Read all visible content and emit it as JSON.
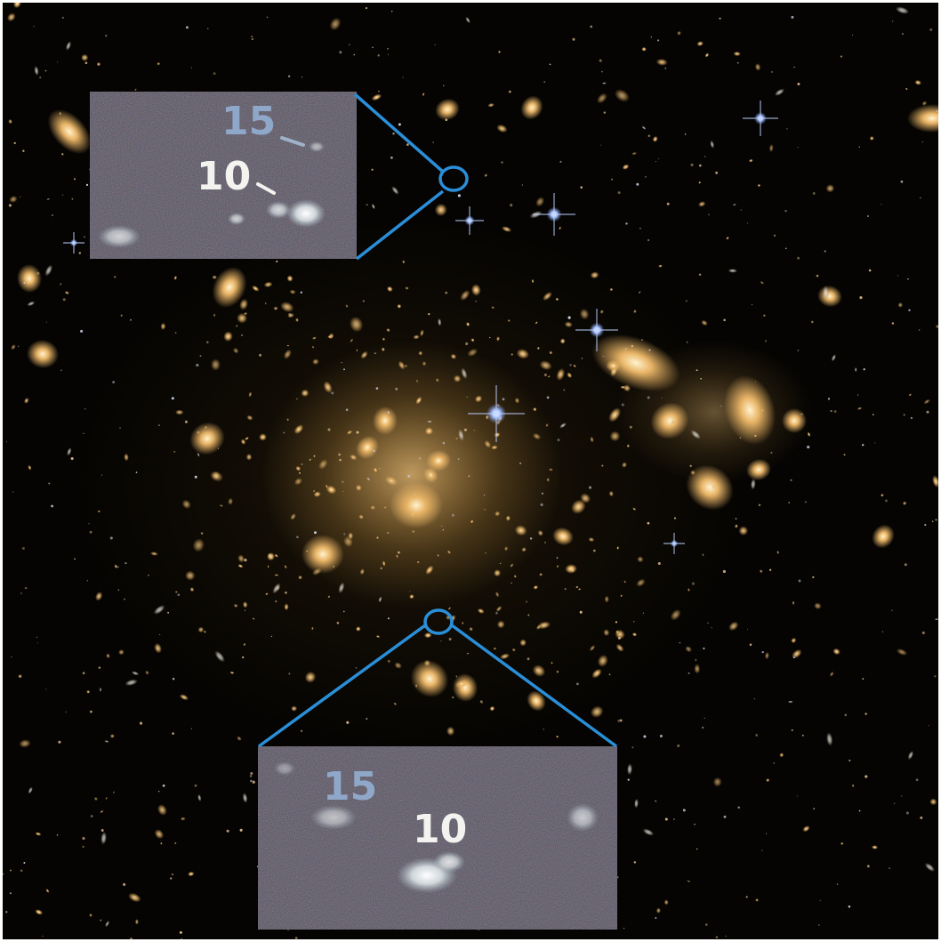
{
  "inset_top": {
    "label_15": "15",
    "label_10": "10"
  },
  "inset_bottom": {
    "label_15": "15",
    "label_10": "10"
  },
  "colors": {
    "callout_line": "#2a8fd8",
    "galaxy": "#e8b466",
    "label_15": "#8fa8c9",
    "label_10": "#f3f3f0",
    "background": "#050402"
  }
}
